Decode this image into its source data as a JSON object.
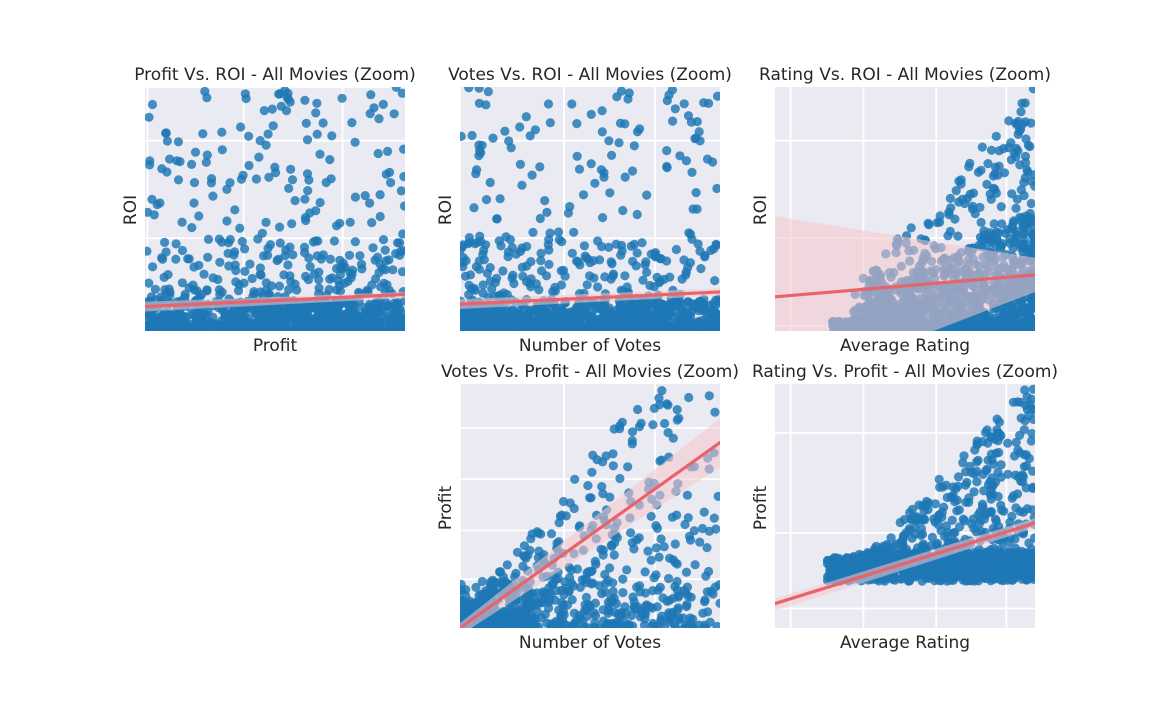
{
  "colors": {
    "background": "#ffffff",
    "axes_face": "#eaeaf2",
    "grid": "#ffffff",
    "points": "#1f77b4",
    "regression_line": "#e8646a",
    "confidence_band": "#f4c7cc",
    "text": "#262626"
  },
  "chart_data": [
    {
      "id": "profit-roi",
      "type": "scatter",
      "title": "Profit Vs. ROI - All Movies (Zoom)",
      "xlabel": "Profit",
      "ylabel": "ROI",
      "tick_labels_shown": false,
      "grid": true,
      "xlim": [
        0,
        100
      ],
      "ylim": [
        0,
        100
      ],
      "xgrid": [
        1,
        38,
        76
      ],
      "ygrid": [
        2,
        38,
        78,
        100
      ],
      "points": {
        "count": 1100,
        "seed": 11,
        "dist": "profit_roi",
        "note": "dense band along bottom, sparse scatter above"
      },
      "regression": {
        "x": [
          0,
          100
        ],
        "y": [
          10,
          15
        ]
      },
      "band": {
        "upper": [
          12,
          16
        ],
        "lower": [
          8,
          13.5
        ]
      }
    },
    {
      "id": "votes-roi",
      "type": "scatter",
      "title": "Votes Vs. ROI - All Movies (Zoom)",
      "xlabel": "Number of Votes",
      "ylabel": "ROI",
      "tick_labels_shown": false,
      "grid": true,
      "xlim": [
        0,
        100
      ],
      "ylim": [
        0,
        100
      ],
      "xgrid": [
        0,
        40,
        75
      ],
      "ygrid": [
        2,
        38,
        78
      ],
      "points": {
        "count": 1100,
        "seed": 23,
        "dist": "votes_roi"
      },
      "regression": {
        "x": [
          0,
          100
        ],
        "y": [
          11,
          16
        ]
      },
      "band": {
        "upper": [
          13,
          17.5
        ],
        "lower": [
          9,
          14.5
        ]
      }
    },
    {
      "id": "rating-roi",
      "type": "scatter",
      "title": "Rating Vs. ROI - All Movies (Zoom)",
      "xlabel": "Average Rating",
      "ylabel": "ROI",
      "tick_labels_shown": false,
      "grid": true,
      "xlim": [
        0,
        100
      ],
      "ylim": [
        0,
        100
      ],
      "xgrid": [
        6,
        34,
        62,
        89
      ],
      "ygrid": [
        2,
        38,
        78
      ],
      "points": {
        "count": 1200,
        "seed": 37,
        "dist": "rating_roi"
      },
      "regression": {
        "x": [
          0,
          100
        ],
        "y": [
          14,
          23
        ]
      },
      "band": {
        "upper": [
          47,
          30
        ],
        "lower": [
          -25,
          16
        ]
      }
    },
    {
      "id": "votes-profit",
      "type": "scatter",
      "title": "Votes Vs. Profit - All Movies (Zoom)",
      "xlabel": "Number of Votes",
      "ylabel": "Profit",
      "tick_labels_shown": false,
      "grid": true,
      "xlim": [
        0,
        100
      ],
      "ylim": [
        0,
        100
      ],
      "xgrid": [
        0,
        40,
        75
      ],
      "ygrid": [
        20,
        40,
        61,
        82
      ],
      "points": {
        "count": 800,
        "seed": 53,
        "dist": "votes_profit"
      },
      "regression": {
        "x": [
          0,
          100
        ],
        "y": [
          0,
          76
        ]
      },
      "band": {
        "upper": [
          2,
          86
        ],
        "lower": [
          -3,
          66
        ]
      }
    },
    {
      "id": "rating-profit",
      "type": "scatter",
      "title": "Rating Vs. Profit - All Movies (Zoom)",
      "xlabel": "Average Rating",
      "ylabel": "Profit",
      "tick_labels_shown": false,
      "grid": true,
      "xlim": [
        0,
        100
      ],
      "ylim": [
        0,
        100
      ],
      "xgrid": [
        6,
        34,
        62,
        89
      ],
      "ygrid": [
        8,
        39,
        80
      ],
      "points": {
        "count": 1100,
        "seed": 71,
        "dist": "rating_profit"
      },
      "regression": {
        "x": [
          0,
          100
        ],
        "y": [
          10,
          43
        ]
      },
      "band": {
        "upper": [
          12,
          45
        ],
        "lower": [
          7,
          41
        ]
      }
    }
  ]
}
